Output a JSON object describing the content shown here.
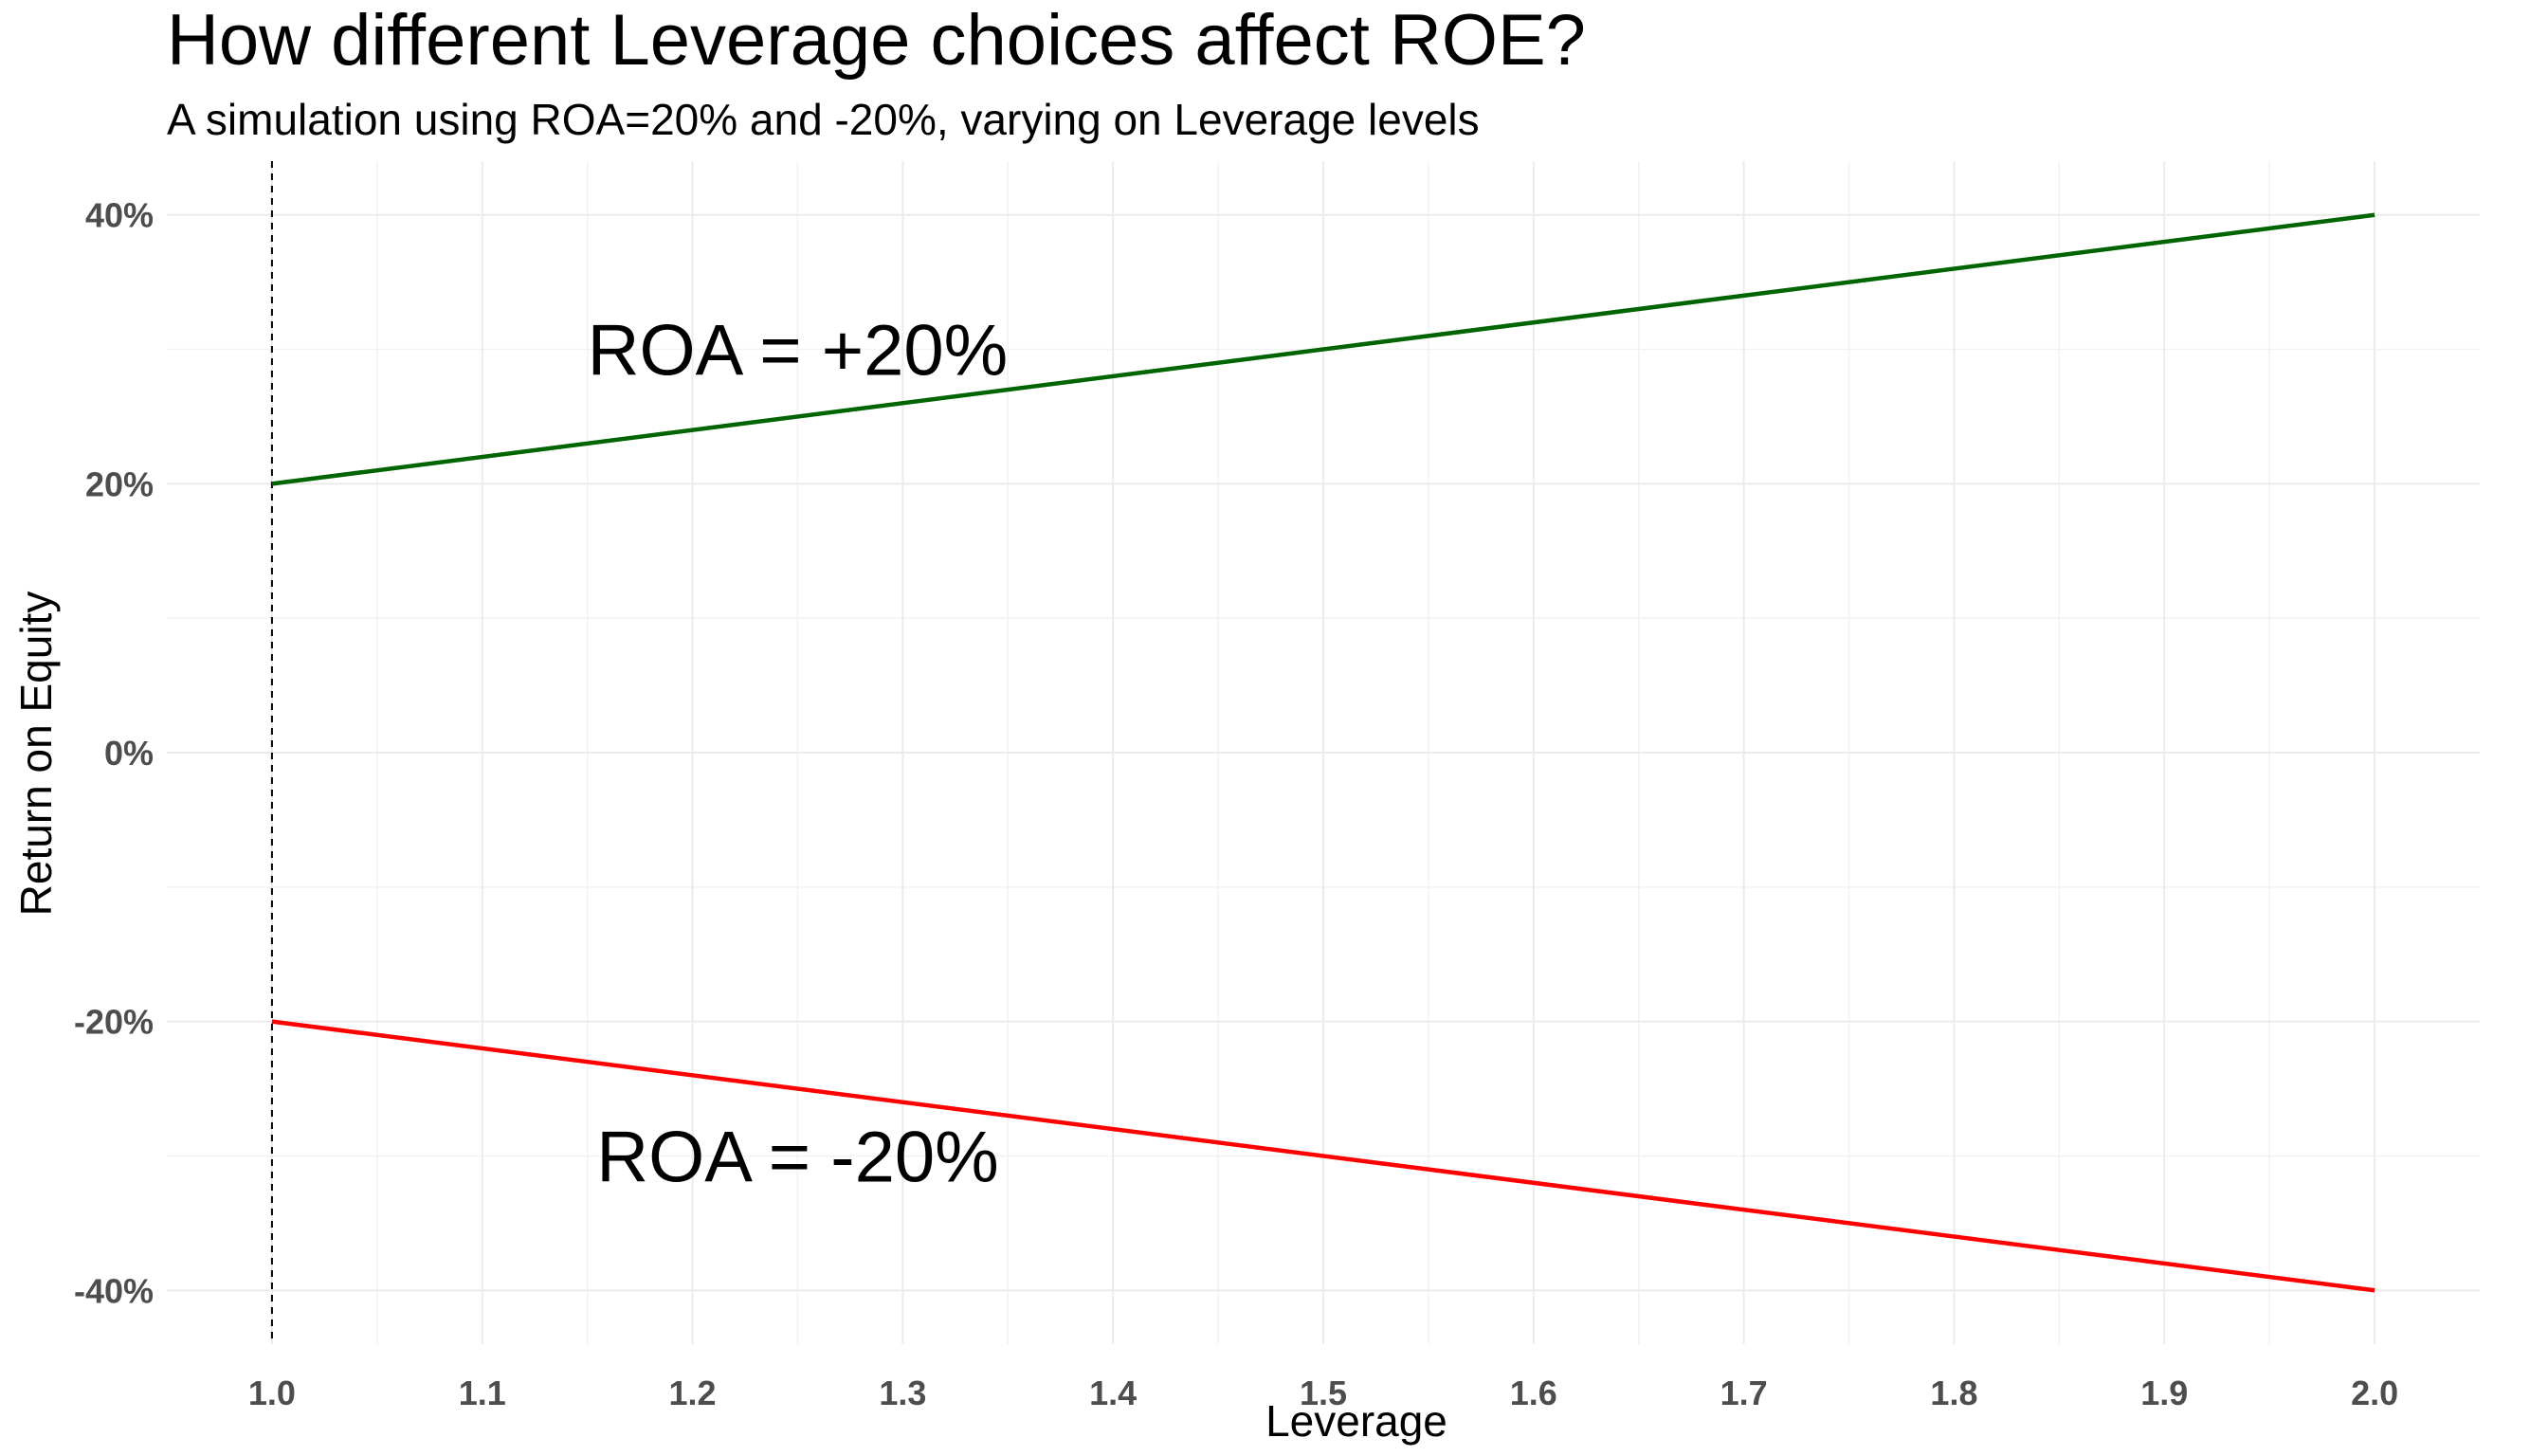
{
  "chart_data": {
    "type": "line",
    "title": "How different Leverage choices affect ROE?",
    "subtitle": "A simulation using ROA=20% and -20%, varying on Leverage levels",
    "xlabel": "Leverage",
    "ylabel": "Return on Equity",
    "xlim": [
      0.95,
      2.05
    ],
    "ylim": [
      -0.44,
      0.44
    ],
    "x_ticks": [
      1.0,
      1.1,
      1.2,
      1.3,
      1.4,
      1.5,
      1.6,
      1.7,
      1.8,
      1.9,
      2.0
    ],
    "x_tick_labels": [
      "1.0",
      "1.1",
      "1.2",
      "1.3",
      "1.4",
      "1.5",
      "1.6",
      "1.7",
      "1.8",
      "1.9",
      "2.0"
    ],
    "y_ticks": [
      -0.4,
      -0.2,
      0.0,
      0.2,
      0.4
    ],
    "y_tick_labels": [
      "-40%",
      "-20%",
      "0%",
      "20%",
      "40%"
    ],
    "grid": true,
    "series": [
      {
        "x": [
          1.0,
          2.0
        ],
        "values": [
          0.2,
          0.4
        ],
        "color": "#006400"
      },
      {
        "x": [
          1.0,
          2.0
        ],
        "values": [
          -0.2,
          -0.4
        ],
        "color": "#ff0000"
      }
    ],
    "vline": {
      "x": 1.0,
      "style": "dashed",
      "color": "#000000"
    },
    "annotations": [
      {
        "text": "ROA = +20%",
        "x": 1.25,
        "y": 0.3
      },
      {
        "text": "ROA = -20%",
        "x": 1.25,
        "y": -0.3
      }
    ]
  }
}
